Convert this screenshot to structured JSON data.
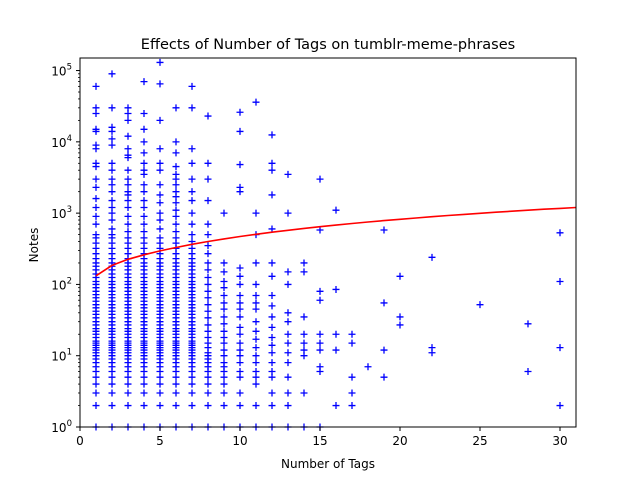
{
  "chart_data": {
    "type": "scatter",
    "title": "Effects of Number of Tags on tumblr-meme-phrases",
    "xlabel": "Number of Tags",
    "ylabel": "Notes",
    "xlim": [
      0,
      31
    ],
    "ylim": [
      1,
      150000
    ],
    "yscale": "log",
    "grid": false,
    "x_ticks": [
      0,
      5,
      10,
      15,
      20,
      25,
      30
    ],
    "y_ticks": [
      {
        "value": 1,
        "label": "10",
        "exp": "0"
      },
      {
        "value": 10,
        "label": "10",
        "exp": "1"
      },
      {
        "value": 100,
        "label": "10",
        "exp": "2"
      },
      {
        "value": 1000,
        "label": "10",
        "exp": "3"
      },
      {
        "value": 10000,
        "label": "10",
        "exp": "4"
      },
      {
        "value": 100000,
        "label": "10",
        "exp": "5"
      }
    ],
    "colors": {
      "points": "#0000ff",
      "fit_line": "#ff0000",
      "axes": "#000000"
    },
    "series": [
      {
        "kind": "points",
        "marker": "plus",
        "columns": [
          {
            "x": 1,
            "y": [
              60000,
              30000,
              25000,
              15000,
              14000,
              9000,
              8000,
              5000,
              4500,
              3000,
              2300,
              1600,
              1200,
              900,
              700,
              500,
              450,
              380,
              320,
              270,
              230,
              200,
              180,
              160,
              140,
              125,
              110,
              100,
              90,
              80,
              72,
              65,
              58,
              52,
              47,
              42,
              38,
              34,
              30,
              27,
              24,
              22,
              20,
              18,
              16,
              15,
              14,
              13,
              12,
              11,
              10,
              9,
              8,
              7,
              6,
              5,
              4,
              3,
              2,
              1
            ]
          },
          {
            "x": 2,
            "y": [
              90000,
              30000,
              16000,
              14000,
              11000,
              9000,
              5000,
              4000,
              3000,
              2500,
              2000,
              1500,
              1200,
              1000,
              800,
              600,
              500,
              450,
              380,
              320,
              270,
              230,
              200,
              180,
              160,
              140,
              125,
              110,
              100,
              90,
              80,
              72,
              65,
              58,
              52,
              47,
              42,
              38,
              34,
              30,
              27,
              24,
              22,
              20,
              18,
              16,
              15,
              14,
              13,
              12,
              11,
              10,
              9,
              8,
              7,
              6,
              5,
              4,
              3,
              2,
              1
            ]
          },
          {
            "x": 3,
            "y": [
              30000,
              25000,
              20000,
              12000,
              8000,
              6500,
              6000,
              4000,
              3000,
              2500,
              2000,
              1800,
              1500,
              1200,
              900,
              700,
              550,
              450,
              380,
              320,
              270,
              230,
              200,
              180,
              160,
              140,
              125,
              110,
              100,
              90,
              80,
              72,
              65,
              58,
              52,
              47,
              42,
              38,
              34,
              30,
              27,
              24,
              22,
              20,
              18,
              16,
              15,
              14,
              13,
              12,
              11,
              10,
              9,
              8,
              7,
              6,
              5,
              4,
              3,
              2,
              1
            ]
          },
          {
            "x": 4,
            "y": [
              70000,
              25000,
              15000,
              10000,
              7000,
              5000,
              4000,
              3500,
              2500,
              2000,
              1500,
              1200,
              900,
              700,
              550,
              450,
              380,
              320,
              270,
              230,
              200,
              180,
              160,
              140,
              125,
              110,
              100,
              90,
              80,
              72,
              65,
              58,
              52,
              47,
              42,
              38,
              34,
              30,
              27,
              24,
              22,
              20,
              18,
              16,
              15,
              14,
              13,
              12,
              11,
              10,
              9,
              8,
              7,
              6,
              5,
              4,
              3,
              2,
              1
            ]
          },
          {
            "x": 5,
            "y": [
              130000,
              65000,
              20000,
              8000,
              5000,
              4000,
              2500,
              1800,
              1400,
              1000,
              800,
              600,
              450,
              380,
              320,
              270,
              230,
              200,
              180,
              160,
              140,
              125,
              110,
              100,
              90,
              80,
              72,
              65,
              58,
              52,
              47,
              42,
              38,
              34,
              30,
              27,
              24,
              22,
              20,
              18,
              16,
              15,
              14,
              13,
              12,
              11,
              10,
              9,
              8,
              7,
              6,
              5,
              4,
              3,
              2,
              1
            ]
          },
          {
            "x": 6,
            "y": [
              30000,
              10000,
              7000,
              4500,
              3500,
              3000,
              2500,
              2000,
              1700,
              1400,
              1100,
              900,
              700,
              550,
              450,
              380,
              320,
              270,
              230,
              200,
              180,
              160,
              140,
              125,
              110,
              100,
              90,
              80,
              72,
              65,
              58,
              52,
              47,
              42,
              38,
              34,
              30,
              27,
              24,
              22,
              20,
              18,
              16,
              15,
              14,
              13,
              12,
              11,
              10,
              9,
              8,
              7,
              6,
              5,
              4,
              3,
              2,
              1
            ]
          },
          {
            "x": 7,
            "y": [
              60000,
              30000,
              8000,
              5000,
              3000,
              2000,
              1500,
              1000,
              700,
              500,
              400,
              320,
              270,
              230,
              200,
              180,
              160,
              140,
              125,
              110,
              100,
              90,
              80,
              72,
              65,
              58,
              52,
              47,
              42,
              38,
              34,
              30,
              27,
              24,
              22,
              20,
              18,
              16,
              15,
              14,
              13,
              12,
              11,
              10,
              9,
              8,
              7,
              6,
              5,
              4,
              3,
              2,
              1
            ]
          },
          {
            "x": 8,
            "y": [
              23000,
              5000,
              3000,
              1500,
              700,
              500,
              350,
              270,
              200,
              160,
              125,
              100,
              80,
              65,
              52,
              42,
              34,
              27,
              22,
              18,
              15,
              13,
              11,
              10,
              9,
              8,
              7,
              6,
              5,
              4,
              3,
              2,
              1
            ]
          },
          {
            "x": 9,
            "y": [
              1000,
              200,
              150,
              110,
              90,
              70,
              55,
              45,
              35,
              28,
              22,
              18,
              15,
              12,
              10,
              8,
              7,
              6,
              5,
              4,
              3,
              2,
              1
            ]
          },
          {
            "x": 10,
            "y": [
              26000,
              14000,
              4800,
              2300,
              2000,
              170,
              130,
              100,
              70,
              55,
              45,
              35,
              25,
              20,
              15,
              12,
              10,
              8,
              6,
              5,
              3,
              2,
              1
            ]
          },
          {
            "x": 11,
            "y": [
              36000,
              1000,
              500,
              200,
              100,
              70,
              55,
              45,
              30,
              22,
              17,
              13,
              10,
              8,
              6,
              5,
              4,
              2,
              1
            ]
          },
          {
            "x": 12,
            "y": [
              12500,
              5000,
              4000,
              1800,
              600,
              200,
              130,
              70,
              50,
              35,
              25,
              18,
              14,
              11,
              8,
              6,
              5,
              3,
              2,
              1
            ]
          },
          {
            "x": 13,
            "y": [
              3500,
              1000,
              150,
              100,
              40,
              30,
              20,
              15,
              11,
              8,
              5,
              3,
              2,
              1
            ]
          },
          {
            "x": 14,
            "y": [
              200,
              150,
              35,
              20,
              15,
              12,
              10,
              3,
              1
            ]
          },
          {
            "x": 15,
            "y": [
              3000,
              580,
              80,
              60,
              20,
              15,
              12,
              7,
              6,
              1
            ]
          },
          {
            "x": 16,
            "y": [
              1100,
              85,
              20,
              12,
              2
            ]
          },
          {
            "x": 17,
            "y": [
              20,
              15,
              5,
              3,
              2
            ]
          },
          {
            "x": 18,
            "y": [
              7
            ]
          },
          {
            "x": 19,
            "y": [
              580,
              55,
              12,
              5
            ]
          },
          {
            "x": 20,
            "y": [
              130,
              35,
              27
            ]
          },
          {
            "x": 22,
            "y": [
              240,
              13,
              11
            ]
          },
          {
            "x": 25,
            "y": [
              52
            ]
          },
          {
            "x": 28,
            "y": [
              28,
              6
            ]
          },
          {
            "x": 30,
            "y": [
              530,
              110,
              13,
              2
            ]
          }
        ]
      },
      {
        "kind": "fit",
        "curve": [
          {
            "x": 1,
            "y": 132
          },
          {
            "x": 2,
            "y": 185
          },
          {
            "x": 3,
            "y": 225
          },
          {
            "x": 4,
            "y": 260
          },
          {
            "x": 5,
            "y": 295
          },
          {
            "x": 6,
            "y": 330
          },
          {
            "x": 7,
            "y": 365
          },
          {
            "x": 8,
            "y": 400
          },
          {
            "x": 9,
            "y": 435
          },
          {
            "x": 10,
            "y": 470
          },
          {
            "x": 11,
            "y": 505
          },
          {
            "x": 12,
            "y": 540
          },
          {
            "x": 13,
            "y": 575
          },
          {
            "x": 14,
            "y": 610
          },
          {
            "x": 15,
            "y": 645
          },
          {
            "x": 16,
            "y": 680
          },
          {
            "x": 17,
            "y": 715
          },
          {
            "x": 18,
            "y": 750
          },
          {
            "x": 19,
            "y": 785
          },
          {
            "x": 20,
            "y": 820
          },
          {
            "x": 21,
            "y": 855
          },
          {
            "x": 22,
            "y": 890
          },
          {
            "x": 23,
            "y": 925
          },
          {
            "x": 24,
            "y": 960
          },
          {
            "x": 25,
            "y": 995
          },
          {
            "x": 26,
            "y": 1030
          },
          {
            "x": 27,
            "y": 1065
          },
          {
            "x": 28,
            "y": 1100
          },
          {
            "x": 29,
            "y": 1135
          },
          {
            "x": 30,
            "y": 1165
          },
          {
            "x": 31,
            "y": 1200
          }
        ]
      }
    ]
  }
}
